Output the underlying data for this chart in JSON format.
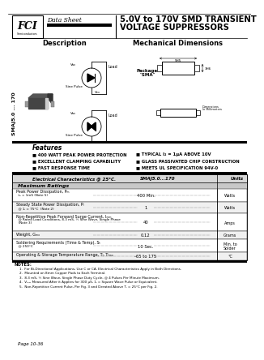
{
  "title_line1": "5.0V to 170V SMD TRANSIENT",
  "title_line2": "VOLTAGE SUPPRESSORS",
  "data_sheet_text": "Data Sheet",
  "description_text": "Description",
  "mechanical_text": "Mechanical Dimensions",
  "package_text": "Package\n\"SMA\"",
  "features_header": "Features",
  "features_left": [
    "■ 400 WATT PEAK POWER PROTECTION",
    "■ EXCELLENT CLAMPING CAPABILITY",
    "■ FAST RESPONSE TIME"
  ],
  "features_right": [
    "■ TYPICAL I₂ = 1μA ABOVE 10V",
    "■ GLASS PASSIVATED CHIP CONSTRUCTION",
    "■ MEETS UL SPECIFICATION 94V-0"
  ],
  "table_header_left": "Electrical Characteristics @ 25°C.",
  "table_header_mid": "SMAJ5.0...170",
  "table_header_right": "Units",
  "table_subheader": "Maximum Ratings",
  "table_rows": [
    {
      "param1": "Peak Power Dissipation, Pₘ",
      "param2": "  tₐ = 1mS (Note 5)",
      "param3": "",
      "value": "400 Min.",
      "unit": "Watts"
    },
    {
      "param1": "Steady State Power Dissipation, Pₗ",
      "param2": "  @ 1ₗ = 75°C  (Note 2)",
      "param3": "",
      "value": "1",
      "unit": "Watts"
    },
    {
      "param1": "Non-Repetitive Peak Forward Surge Current, Iₘₘ",
      "param2": "  @ Rated Load Conditions, 8.3 mS, ½ Sine Wave, Single Phase",
      "param3": "  (Note 3)",
      "value": "40",
      "unit": "Amps"
    },
    {
      "param1": "Weight, Gₘₓ",
      "param2": "",
      "param3": "",
      "value": "0.12",
      "unit": "Grams"
    },
    {
      "param1": "Soldering Requirements (Time & Temp), Sₜ",
      "param2": "  @ 250°C",
      "param3": "",
      "value": "10 Sec.",
      "unit": "Min. to\nSolder"
    },
    {
      "param1": "Operating & Storage Temperature Range, Tₗ, Tₜₘₓ",
      "param2": "",
      "param3": "",
      "value": "-65 to 175",
      "unit": "°C"
    }
  ],
  "notes_header": "NOTES:",
  "notes": [
    "1.  For Bi-Directional Applications, Use C or CA. Electrical Characteristics Apply in Both Directions.",
    "2.  Mounted on 8mm Copper Pads to Each Terminal.",
    "3.  8.3 mS, ½ Sine Wave, Single Phase Duty Cycle, @ 4 Pulses Per Minute Maximum.",
    "4.  Vₘₘ Measured After it Applies for 300 μS, 1ₗ = Square Wave Pulse or Equivalent.",
    "5.  Non-Repetitive Current Pulse, Per Fig. 3 and Derated Above Tₗ = 25°C per Fig. 2."
  ],
  "page_text": "Page 10-36",
  "side_text": "SMAJ5.0 ... 170",
  "watermark_color": "#aec6e0"
}
